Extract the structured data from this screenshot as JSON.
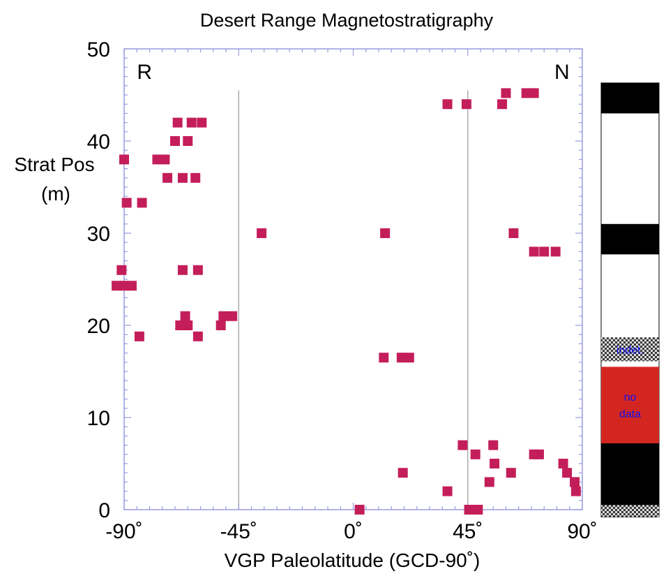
{
  "chart_data": {
    "type": "scatter",
    "title": "Desert Range Magnetostratigraphy",
    "xlabel": "VGP Paleolatitude (GCD-90˚)",
    "ylabel_line1": "Strat Pos",
    "ylabel_line2": "(m)",
    "xlim": [
      -90,
      90
    ],
    "ylim": [
      0,
      50
    ],
    "x_ticks": [
      {
        "value": -90,
        "label": "-90˚"
      },
      {
        "value": -45,
        "label": "-45˚"
      },
      {
        "value": 0,
        "label": "0˚"
      },
      {
        "value": 45,
        "label": "45˚"
      },
      {
        "value": 90,
        "label": "90˚"
      }
    ],
    "y_ticks": [
      {
        "value": 0,
        "label": "0"
      },
      {
        "value": 10,
        "label": "10"
      },
      {
        "value": 20,
        "label": "20"
      },
      {
        "value": 30,
        "label": "30"
      },
      {
        "value": 40,
        "label": "40"
      },
      {
        "value": 50,
        "label": "50"
      }
    ],
    "reference_lines_x": [
      -45,
      45
    ],
    "polarity_labels": [
      {
        "text": "R",
        "x": -82,
        "y": 47.5
      },
      {
        "text": "N",
        "x": 82,
        "y": 47.5
      }
    ],
    "marker_color": "#c41e5a",
    "points": [
      {
        "x": 2.5,
        "y": 0
      },
      {
        "x": 45.5,
        "y": 0
      },
      {
        "x": 49,
        "y": 0
      },
      {
        "x": 37,
        "y": 2
      },
      {
        "x": 53.5,
        "y": 3
      },
      {
        "x": 62,
        "y": 4
      },
      {
        "x": 19.5,
        "y": 4
      },
      {
        "x": 55.5,
        "y": 5
      },
      {
        "x": 48,
        "y": 6
      },
      {
        "x": 43,
        "y": 7
      },
      {
        "x": 55,
        "y": 7
      },
      {
        "x": 71,
        "y": 6
      },
      {
        "x": 73,
        "y": 6
      },
      {
        "x": 82.5,
        "y": 5
      },
      {
        "x": 84,
        "y": 4
      },
      {
        "x": 87,
        "y": 3
      },
      {
        "x": 87.5,
        "y": 2
      },
      {
        "x": 12,
        "y": 16.5
      },
      {
        "x": 19,
        "y": 16.5
      },
      {
        "x": 22,
        "y": 16.5
      },
      {
        "x": -84,
        "y": 18.8
      },
      {
        "x": -61,
        "y": 18.8
      },
      {
        "x": -68,
        "y": 20
      },
      {
        "x": -65,
        "y": 20
      },
      {
        "x": -52,
        "y": 20
      },
      {
        "x": -66,
        "y": 21
      },
      {
        "x": -51,
        "y": 21
      },
      {
        "x": -47.5,
        "y": 21
      },
      {
        "x": -93,
        "y": 24.3
      },
      {
        "x": -90,
        "y": 24.3
      },
      {
        "x": -87,
        "y": 24.3
      },
      {
        "x": -91,
        "y": 26
      },
      {
        "x": -67,
        "y": 26
      },
      {
        "x": -61,
        "y": 26
      },
      {
        "x": -36,
        "y": 30
      },
      {
        "x": 12.5,
        "y": 30
      },
      {
        "x": 63,
        "y": 30
      },
      {
        "x": 71,
        "y": 28
      },
      {
        "x": 75,
        "y": 28
      },
      {
        "x": 79.5,
        "y": 28
      },
      {
        "x": -89,
        "y": 33.3
      },
      {
        "x": -83,
        "y": 33.3
      },
      {
        "x": -73,
        "y": 36
      },
      {
        "x": -67,
        "y": 36
      },
      {
        "x": -62,
        "y": 36
      },
      {
        "x": -90,
        "y": 38
      },
      {
        "x": -77,
        "y": 38
      },
      {
        "x": -74,
        "y": 38
      },
      {
        "x": -70,
        "y": 40
      },
      {
        "x": -65,
        "y": 40
      },
      {
        "x": -69,
        "y": 42
      },
      {
        "x": -63.5,
        "y": 42
      },
      {
        "x": -59.5,
        "y": 42
      },
      {
        "x": 37,
        "y": 44
      },
      {
        "x": 44.5,
        "y": 44
      },
      {
        "x": 58.5,
        "y": 44
      },
      {
        "x": 60,
        "y": 45.2
      },
      {
        "x": 68,
        "y": 45.2
      },
      {
        "x": 71,
        "y": 45.2
      }
    ],
    "polarity_column": {
      "range": [
        -0.8,
        46.3
      ],
      "zones": [
        {
          "from": 43,
          "to": 46.3,
          "fill": "black"
        },
        {
          "from": 27.7,
          "to": 31,
          "fill": "black"
        },
        {
          "from": 16.1,
          "to": 18.7,
          "fill": "checker",
          "label": "indet."
        },
        {
          "from": 7.2,
          "to": 15.5,
          "fill": "red",
          "label_line1": "no",
          "label_line2": "data"
        },
        {
          "from": 0.5,
          "to": 7.2,
          "fill": "black"
        },
        {
          "from": -0.8,
          "to": 0.5,
          "fill": "checker"
        }
      ],
      "colors": {
        "black": "#000000",
        "red": "#d42620",
        "white": "#ffffff"
      }
    },
    "grid": false
  }
}
